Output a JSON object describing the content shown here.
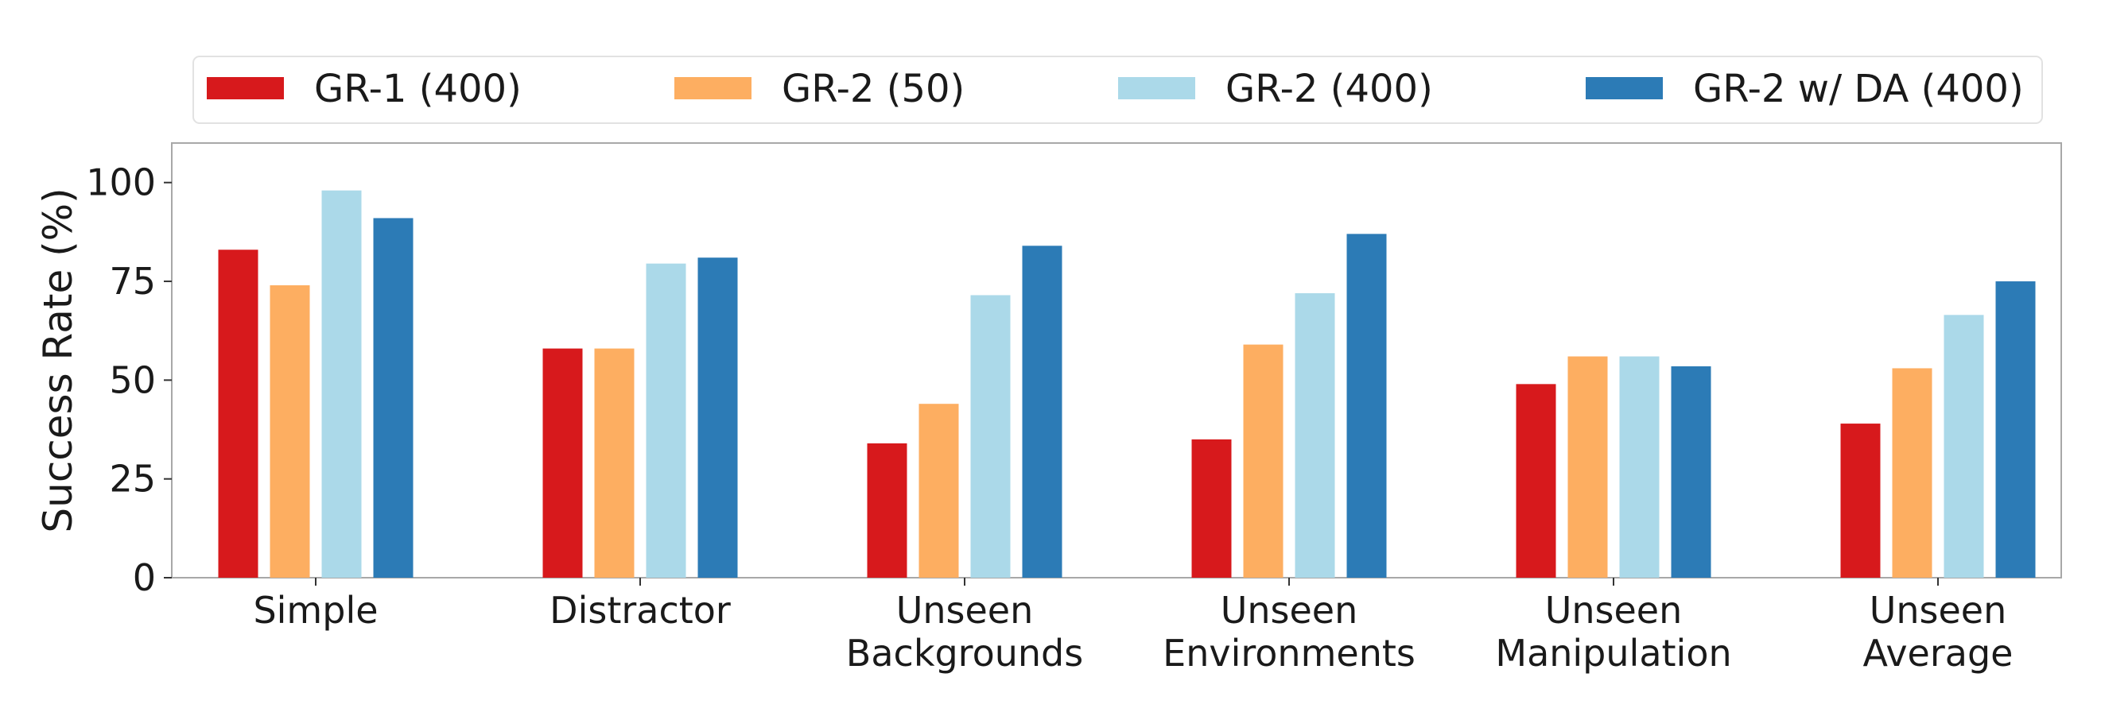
{
  "chart_data": {
    "type": "bar",
    "title": "",
    "xlabel": "",
    "ylabel": "Success Rate (%)",
    "ylim": [
      0,
      110
    ],
    "yticks": [
      0,
      25,
      50,
      75,
      100
    ],
    "grid": false,
    "legend_position": "top",
    "categories": [
      [
        "Simple"
      ],
      [
        "Distractor"
      ],
      [
        "Unseen",
        "Backgrounds"
      ],
      [
        "Unseen",
        "Environments"
      ],
      [
        "Unseen",
        "Manipulation"
      ],
      [
        "Unseen",
        "Average"
      ]
    ],
    "series": [
      {
        "name": "GR-1 (400)",
        "color": "#d7191c",
        "values": [
          83,
          58,
          34,
          35,
          49,
          39
        ]
      },
      {
        "name": "GR-2 (50)",
        "color": "#fdae61",
        "values": [
          74,
          58,
          44,
          59,
          56,
          53
        ]
      },
      {
        "name": "GR-2 (400)",
        "color": "#abd9e9",
        "values": [
          98,
          79.5,
          71.5,
          72,
          56,
          66.5
        ]
      },
      {
        "name": "GR-2 w/ DA (400)",
        "color": "#2c7bb6",
        "values": [
          91,
          81,
          84,
          87,
          53.5,
          75
        ]
      }
    ]
  }
}
